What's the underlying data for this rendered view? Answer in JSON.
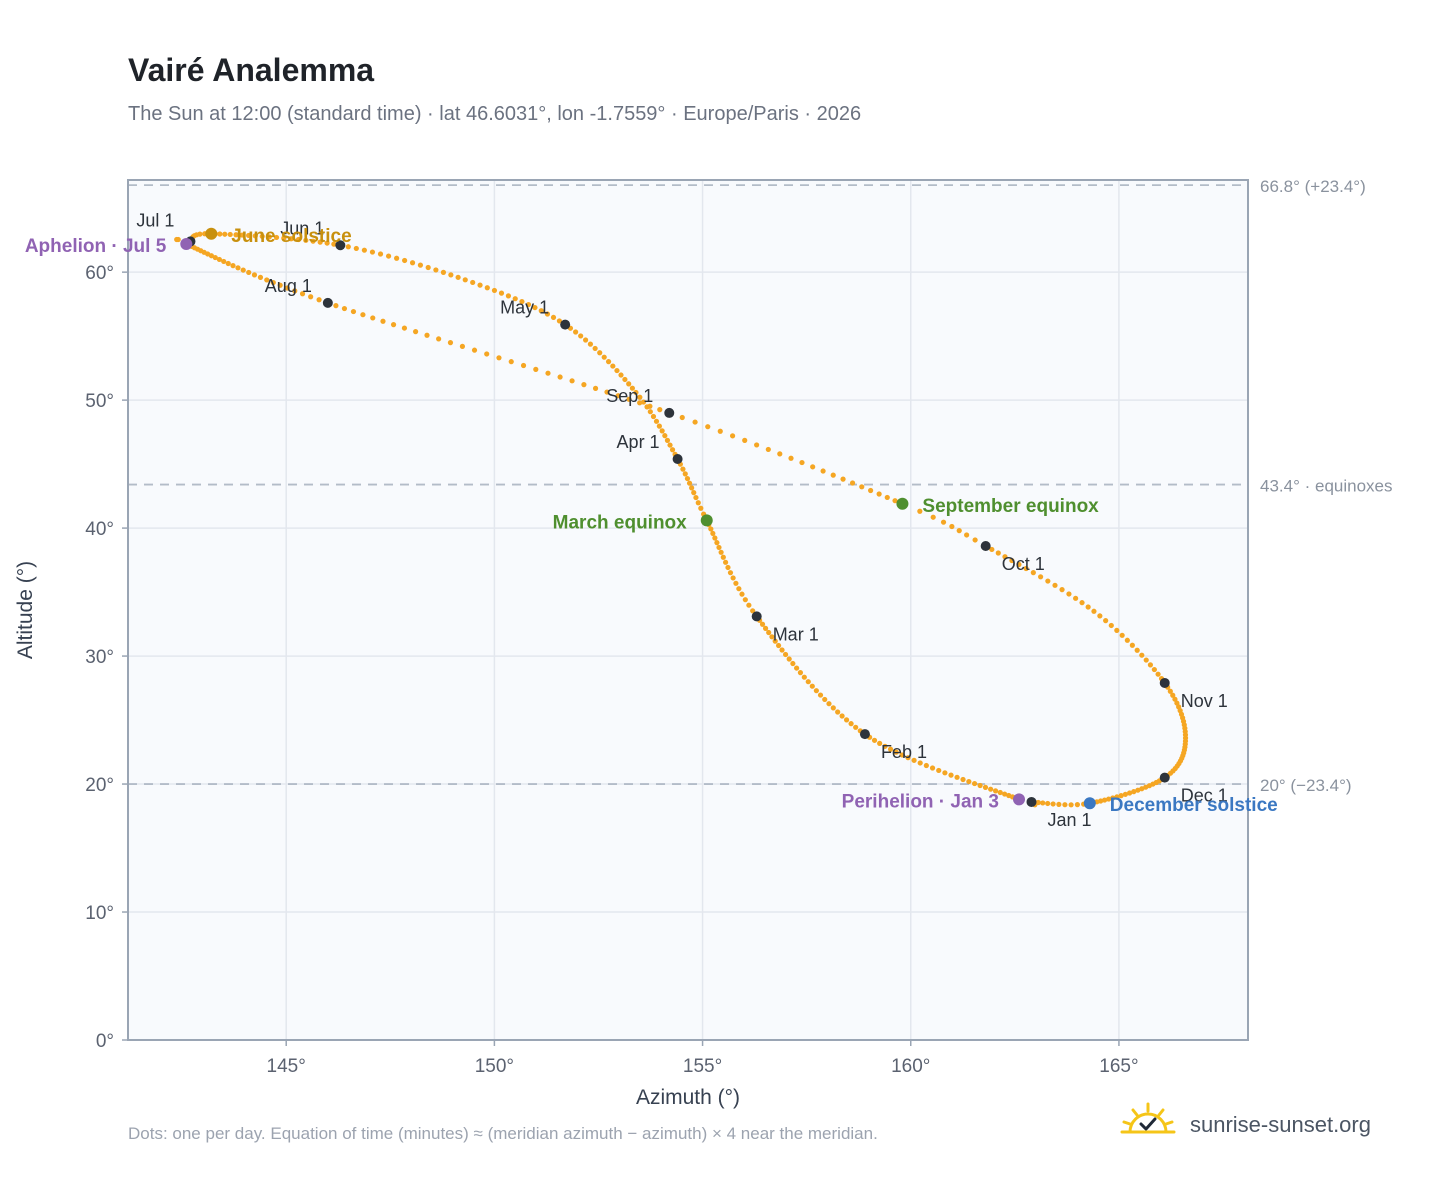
{
  "title": "Vairé Analemma",
  "subtitle": "The Sun at 12:00 (standard time) · lat 46.6031°, lon -1.7559° · Europe/Paris · 2026",
  "footnote": "Dots: one per day. Equation of time (minutes) ≈ (meridian azimuth − azimuth) × 4 near the meridian.",
  "brand": {
    "name": "sunrise-sunset.org",
    "icon": "sun-icon"
  },
  "colors": {
    "curve": "#f5a623",
    "month_marker": "#2d333b",
    "solstice_june": "#c8900e",
    "solstice_december": "#3b78c2",
    "equinox": "#4f8f2f",
    "apsis": "#9063b3",
    "plot_bg": "#f8fafd",
    "grid": "#e3e7ee",
    "frame": "#9aa5b4"
  },
  "chart_data": {
    "type": "scatter",
    "xlabel": "Azimuth (°)",
    "ylabel": "Altitude (°)",
    "xlim": [
      141.2,
      168.1
    ],
    "ylim": [
      0,
      67.2
    ],
    "xticks": [
      145,
      150,
      155,
      160,
      165
    ],
    "xtick_labels": [
      "145°",
      "150°",
      "155°",
      "160°",
      "165°"
    ],
    "yticks": [
      0,
      10,
      20,
      30,
      40,
      50,
      60
    ],
    "ytick_labels": [
      "0°",
      "10°",
      "20°",
      "30°",
      "40°",
      "50°",
      "60°"
    ],
    "grid": true,
    "reference_lines": [
      {
        "y": 66.8,
        "label": "66.8° (+23.4°)"
      },
      {
        "y": 43.4,
        "label": "43.4° · equinoxes"
      },
      {
        "y": 20.0,
        "label": "20° (−23.4°)"
      }
    ],
    "month_markers": [
      {
        "label": "Jan 1",
        "az": 162.9,
        "alt": 18.6
      },
      {
        "label": "Feb 1",
        "az": 158.9,
        "alt": 23.9
      },
      {
        "label": "Mar 1",
        "az": 156.3,
        "alt": 33.1
      },
      {
        "label": "Apr 1",
        "az": 154.4,
        "alt": 45.4
      },
      {
        "label": "May 1",
        "az": 151.7,
        "alt": 55.9
      },
      {
        "label": "Jun 1",
        "az": 146.3,
        "alt": 62.1
      },
      {
        "label": "Jul 1",
        "az": 142.7,
        "alt": 62.4
      },
      {
        "label": "Aug 1",
        "az": 146.0,
        "alt": 57.6
      },
      {
        "label": "Sep 1",
        "az": 154.2,
        "alt": 49.0
      },
      {
        "label": "Oct 1",
        "az": 161.8,
        "alt": 38.6
      },
      {
        "label": "Nov 1",
        "az": 166.1,
        "alt": 27.9
      },
      {
        "label": "Dec 1",
        "az": 166.1,
        "alt": 20.5
      }
    ],
    "events": [
      {
        "label": "June solstice",
        "az": 143.2,
        "alt": 63.0,
        "kind": "solstice_june"
      },
      {
        "label": "Aphelion · Jul 5",
        "az": 142.6,
        "alt": 62.2,
        "kind": "apsis"
      },
      {
        "label": "March equinox",
        "az": 155.1,
        "alt": 40.6,
        "kind": "equinox"
      },
      {
        "label": "September equinox",
        "az": 159.8,
        "alt": 41.9,
        "kind": "equinox"
      },
      {
        "label": "Perihelion · Jan 3",
        "az": 162.6,
        "alt": 18.8,
        "kind": "apsis"
      },
      {
        "label": "December solstice",
        "az": 164.3,
        "alt": 18.5,
        "kind": "solstice_december"
      }
    ],
    "curve_anchors": [
      {
        "day": 1,
        "az": 162.9,
        "alt": 18.6
      },
      {
        "day": 3,
        "az": 162.6,
        "alt": 18.8
      },
      {
        "day": 32,
        "az": 158.9,
        "alt": 23.9
      },
      {
        "day": 60,
        "az": 156.3,
        "alt": 33.1
      },
      {
        "day": 79,
        "az": 155.1,
        "alt": 40.6
      },
      {
        "day": 91,
        "az": 154.4,
        "alt": 45.4
      },
      {
        "day": 105,
        "az": 153.4,
        "alt": 50.6
      },
      {
        "day": 121,
        "az": 151.7,
        "alt": 55.9
      },
      {
        "day": 136,
        "az": 149.3,
        "alt": 59.4
      },
      {
        "day": 152,
        "az": 146.3,
        "alt": 62.1
      },
      {
        "day": 172,
        "az": 143.2,
        "alt": 63.0
      },
      {
        "day": 182,
        "az": 142.7,
        "alt": 62.4
      },
      {
        "day": 186,
        "az": 142.6,
        "alt": 62.2
      },
      {
        "day": 213,
        "az": 146.0,
        "alt": 57.6
      },
      {
        "day": 244,
        "az": 154.2,
        "alt": 49.0
      },
      {
        "day": 266,
        "az": 159.8,
        "alt": 41.9
      },
      {
        "day": 274,
        "az": 161.8,
        "alt": 38.6
      },
      {
        "day": 290,
        "az": 164.4,
        "alt": 33.5
      },
      {
        "day": 305,
        "az": 166.1,
        "alt": 27.9
      },
      {
        "day": 320,
        "az": 166.6,
        "alt": 23.6
      },
      {
        "day": 335,
        "az": 166.1,
        "alt": 20.5
      },
      {
        "day": 355,
        "az": 164.3,
        "alt": 18.5
      },
      {
        "day": 366,
        "az": 162.9,
        "alt": 18.6
      }
    ]
  }
}
